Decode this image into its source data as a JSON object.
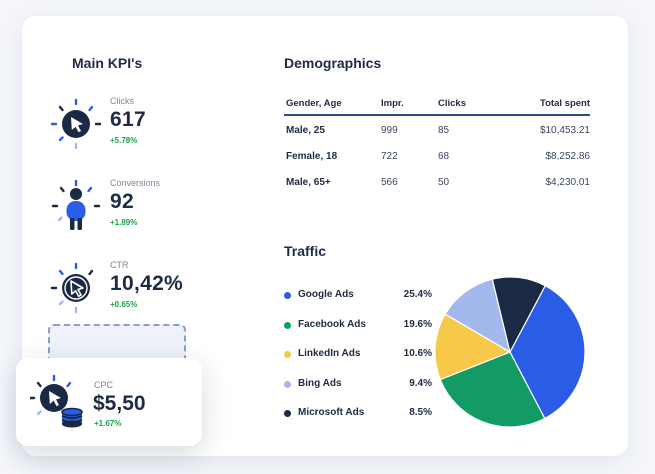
{
  "kpi": {
    "title": "Main KPI's",
    "items": [
      {
        "label": "Clicks",
        "value": "617",
        "change": "+5.78%",
        "icon": "cursor-click-icon"
      },
      {
        "label": "Conversions",
        "value": "92",
        "change": "+1.89%",
        "icon": "person-icon"
      },
      {
        "label": "CTR",
        "value": "10,42%",
        "change": "+0.65%",
        "icon": "cursor-ratio-icon"
      }
    ],
    "floating": {
      "label": "CPC",
      "value": "$5,50",
      "change": "+1.67%",
      "icon": "cursor-coins-icon"
    }
  },
  "demographics": {
    "title": "Demographics",
    "columns": [
      "Gender, Age",
      "Impr.",
      "Clicks",
      "Total spent"
    ],
    "rows": [
      [
        "Male, 25",
        "999",
        "85",
        "$10,453.21"
      ],
      [
        "Female, 18",
        "722",
        "68",
        "$8,252.86"
      ],
      [
        "Male, 65+",
        "566",
        "50",
        "$4,230.01"
      ]
    ]
  },
  "traffic": {
    "title": "Traffic",
    "items": [
      {
        "name": "Google Ads",
        "pct": "25.4%",
        "color": "#2b5ce6"
      },
      {
        "name": "Facebook Ads",
        "pct": "19.6%",
        "color": "#149a64"
      },
      {
        "name": "LinkedIn Ads",
        "pct": "10.6%",
        "color": "#f7c948"
      },
      {
        "name": "Bing Ads",
        "pct": "9.4%",
        "color": "#a3b9ee"
      },
      {
        "name": "Microsoft Ads",
        "pct": "8.5%",
        "color": "#1b2a44"
      }
    ]
  },
  "chart_data": {
    "type": "pie",
    "categories": [
      "Google Ads",
      "Facebook Ads",
      "LinkedIn Ads",
      "Bing Ads",
      "Microsoft Ads"
    ],
    "values": [
      25.4,
      19.6,
      10.6,
      9.4,
      8.5
    ],
    "colors": [
      "#2b5ce6",
      "#149a64",
      "#f7c948",
      "#a3b9ee",
      "#1b2a44"
    ],
    "legend": "left"
  }
}
